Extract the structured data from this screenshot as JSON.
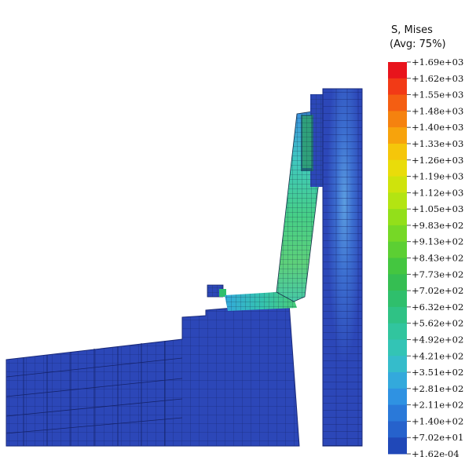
{
  "legend": {
    "title_line1": "S, Mises",
    "title_line2": "(Avg: 75%)",
    "values": [
      "+1.69e+03",
      "+1.62e+03",
      "+1.55e+03",
      "+1.48e+03",
      "+1.40e+03",
      "+1.33e+03",
      "+1.26e+03",
      "+1.19e+03",
      "+1.12e+03",
      "+1.05e+03",
      "+9.83e+02",
      "+9.13e+02",
      "+8.43e+02",
      "+7.73e+02",
      "+7.02e+02",
      "+6.32e+02",
      "+5.62e+02",
      "+4.92e+02",
      "+4.21e+02",
      "+3.51e+02",
      "+2.81e+02",
      "+2.11e+02",
      "+1.40e+02",
      "+7.02e+01",
      "+1.62e-04"
    ],
    "colors": [
      "#e8141c",
      "#f23a16",
      "#f45e12",
      "#f5820f",
      "#f7a30c",
      "#f5c60a",
      "#e9dc0a",
      "#cfe30c",
      "#b3e412",
      "#93df1a",
      "#76d826",
      "#5ccf33",
      "#44c640",
      "#35be52",
      "#2fbf6c",
      "#2fc285",
      "#31c59e",
      "#33c4b5",
      "#35bccb",
      "#33a9dc",
      "#2f92e2",
      "#2a79d9",
      "#2662cc",
      "#2048b8"
    ]
  },
  "mesh": {
    "base_color": "#2c47b8",
    "deep_color": "#2540b0",
    "line_color": "#15236a"
  }
}
